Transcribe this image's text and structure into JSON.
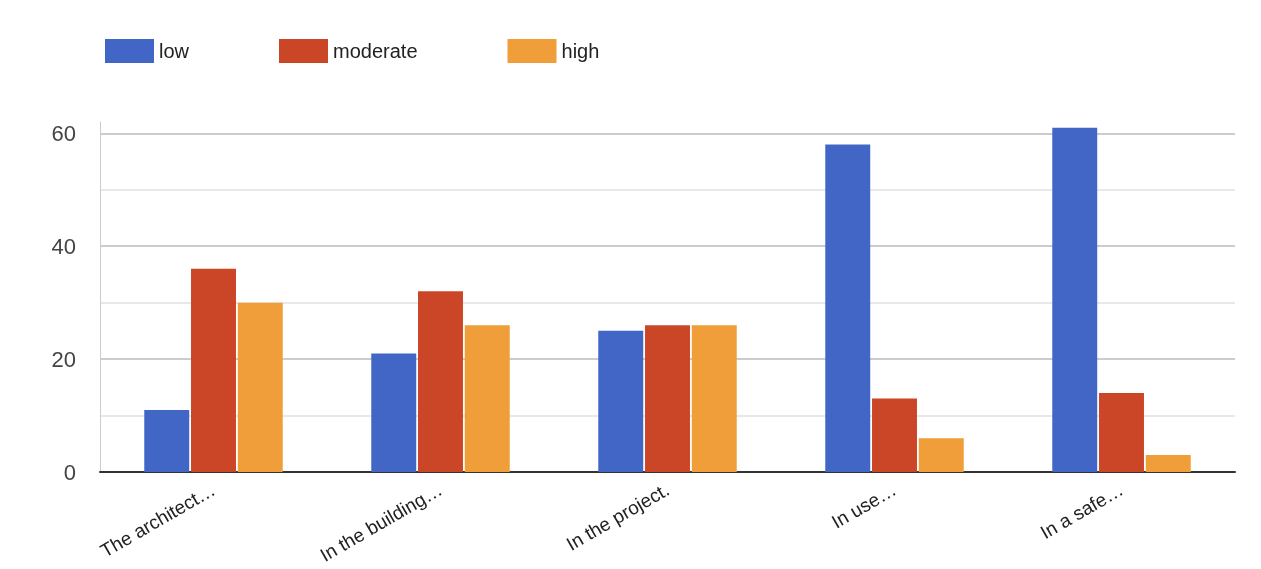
{
  "chart_data": {
    "type": "bar",
    "categories": [
      "The architect…",
      "In the building…",
      "In the project.",
      "In use…",
      "In a safe…"
    ],
    "series": [
      {
        "name": "low",
        "color": "#4166c5",
        "values": [
          11,
          21,
          25,
          58,
          61
        ]
      },
      {
        "name": "moderate",
        "color": "#cb4527",
        "values": [
          36,
          32,
          26,
          13,
          14
        ]
      },
      {
        "name": "high",
        "color": "#f09e39",
        "values": [
          30,
          26,
          26,
          6,
          3
        ]
      }
    ],
    "ylim": [
      0,
      62
    ],
    "yticks": [
      0,
      {
        "value": 10,
        "label": null
      },
      20,
      {
        "value": 30,
        "label": null
      },
      40,
      {
        "value": 50,
        "label": null
      },
      60
    ],
    "grid": "y",
    "legend": "top left"
  }
}
